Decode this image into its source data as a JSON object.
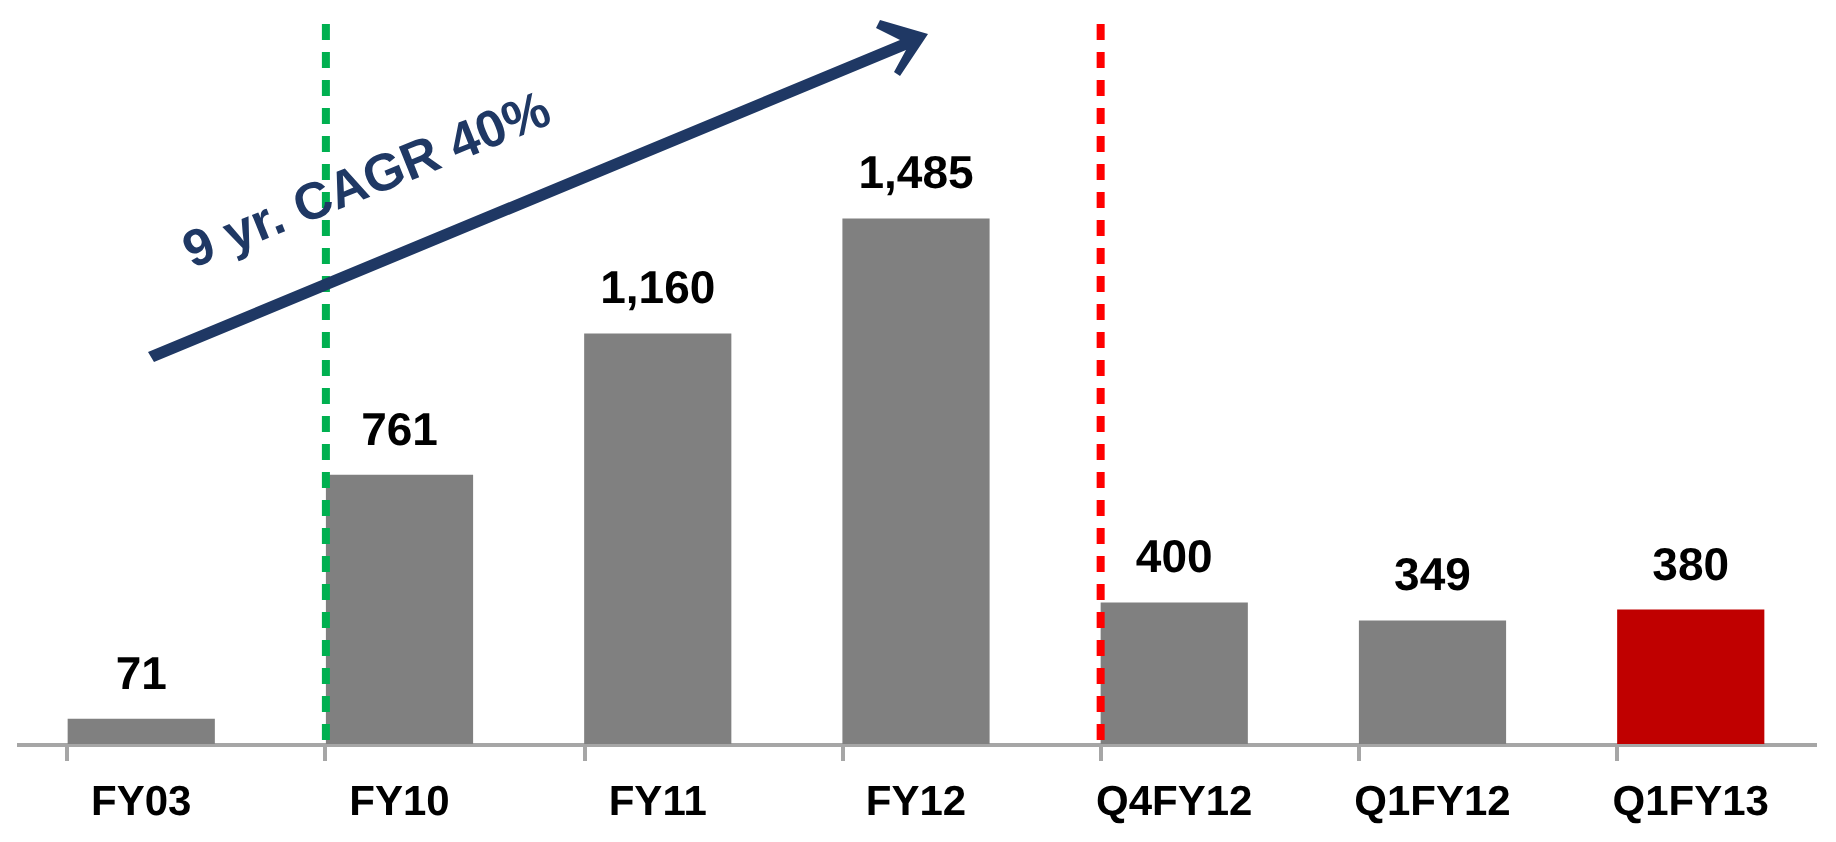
{
  "chart_data": {
    "type": "bar",
    "categories": [
      "FY03",
      "FY10",
      "FY11",
      "FY12",
      "Q4FY12",
      "Q1FY12",
      "Q1FY13"
    ],
    "values": [
      71,
      761,
      1160,
      1485,
      400,
      349,
      380
    ],
    "colors": [
      "#808080",
      "#808080",
      "#808080",
      "#808080",
      "#808080",
      "#808080",
      "#c00000"
    ],
    "value_labels": [
      "71",
      "761",
      "1,160",
      "1,485",
      "400",
      "349",
      "380"
    ],
    "tick_labels": "x",
    "grid": false,
    "ref_lines": [
      {
        "axis": "x",
        "value": "FY10",
        "color": "#00b050",
        "line_style": "dashed"
      },
      {
        "axis": "x",
        "value": "Q4FY12",
        "color": "#ff0000",
        "line_style": "dashed"
      }
    ],
    "annotations": [
      "9 yr. CAGR 40%"
    ]
  }
}
